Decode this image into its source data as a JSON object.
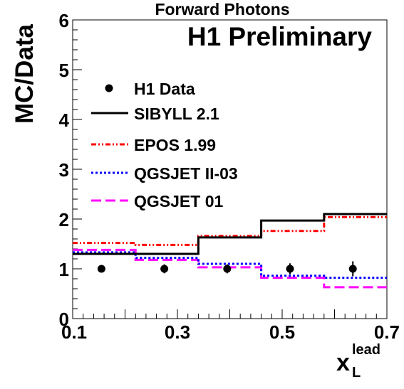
{
  "chart_data": {
    "type": "line",
    "title": "Forward Photons",
    "annotation": "H1 Preliminary",
    "ylabel": "MC/Data",
    "xlabel": "x",
    "xlabel_sup": "lead",
    "xlabel_sub": "L",
    "xlim": [
      0.1,
      0.7
    ],
    "ylim": [
      0,
      6
    ],
    "xticks": [
      "0.1",
      "0.3",
      "0.5",
      "0.7"
    ],
    "xtick_values": [
      0.1,
      0.3,
      0.5,
      0.7
    ],
    "yticks": [
      "0",
      "1",
      "2",
      "3",
      "4",
      "5",
      "6"
    ],
    "ytick_values": [
      0,
      1,
      2,
      3,
      4,
      5,
      6
    ],
    "bin_edges": [
      0.1,
      0.22,
      0.34,
      0.46,
      0.58,
      0.7
    ],
    "legend_position": "top-left",
    "data_points": {
      "name": "H1 Data",
      "x": [
        0.155,
        0.275,
        0.395,
        0.515,
        0.635
      ],
      "y": [
        1.0,
        1.0,
        1.0,
        1.0,
        1.0
      ],
      "err": [
        0.05,
        0.09,
        0.09,
        0.11,
        0.15
      ]
    },
    "series": [
      {
        "name": "SIBYLL 2.1",
        "color": "#000000",
        "dash": "solid",
        "values": [
          1.3,
          1.3,
          1.63,
          1.97,
          2.1
        ]
      },
      {
        "name": "EPOS 1.99",
        "color": "#ff0000",
        "dash": "dashdot",
        "values": [
          1.52,
          1.48,
          1.66,
          1.76,
          2.04
        ]
      },
      {
        "name": "QGSJET II-03",
        "color": "#0000ff",
        "dash": "dotted",
        "values": [
          1.33,
          1.22,
          1.1,
          0.86,
          0.82
        ]
      },
      {
        "name": "QGSJET 01",
        "color": "#ff00ff",
        "dash": "dashed",
        "values": [
          1.38,
          1.18,
          1.03,
          0.82,
          0.63
        ]
      }
    ]
  }
}
